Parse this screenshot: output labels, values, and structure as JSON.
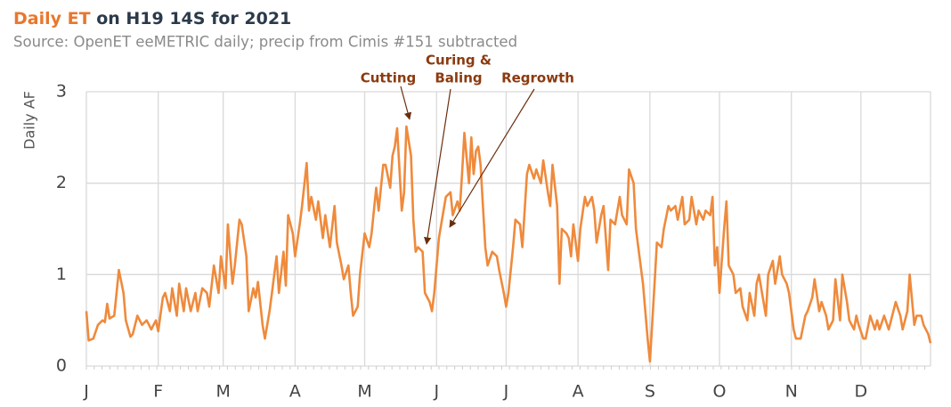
{
  "chart_data": {
    "type": "line",
    "title_parts": [
      "Daily ET",
      "on H19 14S for 2021"
    ],
    "subtitle": "Source: OpenET eeMETRIC daily; precip from Cimis #151 subtracted",
    "y_label": "Daily AF",
    "color": "#ef8a3c",
    "title_color": "#e8772e",
    "grid": true,
    "xlim": [
      1,
      365
    ],
    "xticks": [
      {
        "value": 1,
        "label": "J"
      },
      {
        "value": 32,
        "label": "F"
      },
      {
        "value": 60,
        "label": "M"
      },
      {
        "value": 91,
        "label": "A"
      },
      {
        "value": 121,
        "label": "M"
      },
      {
        "value": 152,
        "label": "J"
      },
      {
        "value": 182,
        "label": "J"
      },
      {
        "value": 213,
        "label": "A"
      },
      {
        "value": 244,
        "label": "S"
      },
      {
        "value": 274,
        "label": "O"
      },
      {
        "value": 305,
        "label": "N"
      },
      {
        "value": 335,
        "label": "D"
      }
    ],
    "ylim": [
      0,
      3
    ],
    "yticks": [
      0,
      1,
      2,
      3
    ],
    "annotations": [
      {
        "lines": [
          "Cutting"
        ]
      },
      {
        "lines": [
          "Curing &",
          "Baling"
        ]
      },
      {
        "lines": [
          "Regrowth"
        ]
      }
    ],
    "x": [
      1,
      2,
      4,
      6,
      8,
      9,
      10,
      11,
      13,
      14,
      15,
      17,
      18,
      20,
      21,
      23,
      25,
      27,
      29,
      31,
      32,
      34,
      35,
      37,
      38,
      40,
      41,
      43,
      44,
      46,
      48,
      49,
      51,
      53,
      54,
      56,
      58,
      59,
      61,
      62,
      64,
      65,
      67,
      68,
      70,
      71,
      73,
      74,
      75,
      77,
      78,
      80,
      81,
      83,
      84,
      86,
      87,
      88,
      90,
      91,
      93,
      94,
      96,
      97,
      98,
      100,
      101,
      103,
      104,
      106,
      108,
      109,
      111,
      112,
      114,
      115,
      116,
      118,
      119,
      121,
      123,
      124,
      126,
      127,
      129,
      130,
      132,
      133,
      134,
      135,
      137,
      138,
      139,
      141,
      142,
      143,
      144,
      146,
      147,
      149,
      150,
      151,
      153,
      154,
      156,
      158,
      159,
      161,
      162,
      163,
      164,
      166,
      167,
      168,
      169,
      170,
      171,
      173,
      174,
      176,
      178,
      179,
      181,
      182,
      183,
      185,
      186,
      188,
      189,
      191,
      192,
      194,
      195,
      197,
      198,
      200,
      201,
      202,
      204,
      205,
      206,
      208,
      209,
      210,
      211,
      213,
      214,
      216,
      217,
      219,
      220,
      221,
      223,
      224,
      226,
      227,
      229,
      231,
      232,
      234,
      235,
      237,
      238,
      239,
      241,
      242,
      243,
      244,
      246,
      247,
      249,
      250,
      252,
      253,
      255,
      256,
      258,
      259,
      261,
      262,
      264,
      265,
      267,
      268,
      270,
      271,
      272,
      273,
      274,
      276,
      277,
      278,
      280,
      281,
      283,
      284,
      286,
      287,
      289,
      290,
      291,
      293,
      294,
      295,
      297,
      298,
      300,
      301,
      303,
      304,
      306,
      307,
      309,
      311,
      312,
      314,
      315,
      317,
      318,
      320,
      321,
      323,
      324,
      326,
      327,
      329,
      330,
      332,
      333,
      334,
      336,
      337,
      339,
      341,
      342,
      343,
      345,
      347,
      349,
      350,
      352,
      353,
      355,
      356,
      358,
      359,
      361,
      362,
      364,
      365
    ],
    "values": [
      0.6,
      0.28,
      0.3,
      0.45,
      0.5,
      0.48,
      0.68,
      0.52,
      0.55,
      0.8,
      1.05,
      0.8,
      0.5,
      0.32,
      0.35,
      0.55,
      0.45,
      0.5,
      0.4,
      0.5,
      0.38,
      0.75,
      0.8,
      0.6,
      0.85,
      0.55,
      0.9,
      0.6,
      0.85,
      0.6,
      0.8,
      0.6,
      0.85,
      0.8,
      0.65,
      1.1,
      0.8,
      1.2,
      0.85,
      1.55,
      0.9,
      1.1,
      1.6,
      1.55,
      1.2,
      0.6,
      0.85,
      0.75,
      0.92,
      0.45,
      0.3,
      0.6,
      0.8,
      1.2,
      0.8,
      1.25,
      0.88,
      1.65,
      1.45,
      1.2,
      1.55,
      1.75,
      2.22,
      1.7,
      1.85,
      1.6,
      1.8,
      1.4,
      1.65,
      1.3,
      1.75,
      1.35,
      1.1,
      0.95,
      1.1,
      0.8,
      0.55,
      0.65,
      1.0,
      1.45,
      1.3,
      1.45,
      1.95,
      1.7,
      2.2,
      2.2,
      1.95,
      2.3,
      2.4,
      2.6,
      1.7,
      1.9,
      2.62,
      2.3,
      1.6,
      1.25,
      1.3,
      1.25,
      0.8,
      0.7,
      0.6,
      0.8,
      1.4,
      1.55,
      1.85,
      1.9,
      1.65,
      1.8,
      1.7,
      2.1,
      2.55,
      2.0,
      2.5,
      2.1,
      2.35,
      2.4,
      2.2,
      1.3,
      1.1,
      1.25,
      1.2,
      1.05,
      0.8,
      0.65,
      0.8,
      1.3,
      1.6,
      1.55,
      1.3,
      2.1,
      2.2,
      2.05,
      2.15,
      2.0,
      2.25,
      1.9,
      1.75,
      2.2,
      1.75,
      0.9,
      1.5,
      1.45,
      1.4,
      1.2,
      1.55,
      1.15,
      1.5,
      1.85,
      1.75,
      1.85,
      1.7,
      1.35,
      1.65,
      1.75,
      1.05,
      1.6,
      1.55,
      1.85,
      1.65,
      1.55,
      2.15,
      2.0,
      1.5,
      1.3,
      0.9,
      0.6,
      0.3,
      0.05,
      0.9,
      1.35,
      1.3,
      1.5,
      1.75,
      1.7,
      1.75,
      1.6,
      1.85,
      1.55,
      1.6,
      1.85,
      1.55,
      1.7,
      1.6,
      1.7,
      1.65,
      1.85,
      1.1,
      1.3,
      0.8,
      1.5,
      1.8,
      1.1,
      1.0,
      0.8,
      0.85,
      0.65,
      0.5,
      0.8,
      0.55,
      0.9,
      1.0,
      0.7,
      0.55,
      1.0,
      1.15,
      0.9,
      1.2,
      1.0,
      0.9,
      0.8,
      0.4,
      0.3,
      0.3,
      0.55,
      0.6,
      0.75,
      0.95,
      0.6,
      0.7,
      0.55,
      0.4,
      0.5,
      0.95,
      0.5,
      1.0,
      0.7,
      0.5,
      0.4,
      0.55,
      0.45,
      0.3,
      0.3,
      0.55,
      0.4,
      0.5,
      0.4,
      0.55,
      0.4,
      0.6,
      0.7,
      0.55,
      0.4,
      0.6,
      1.0,
      0.45,
      0.55,
      0.55,
      0.45,
      0.35,
      0.25
    ]
  }
}
